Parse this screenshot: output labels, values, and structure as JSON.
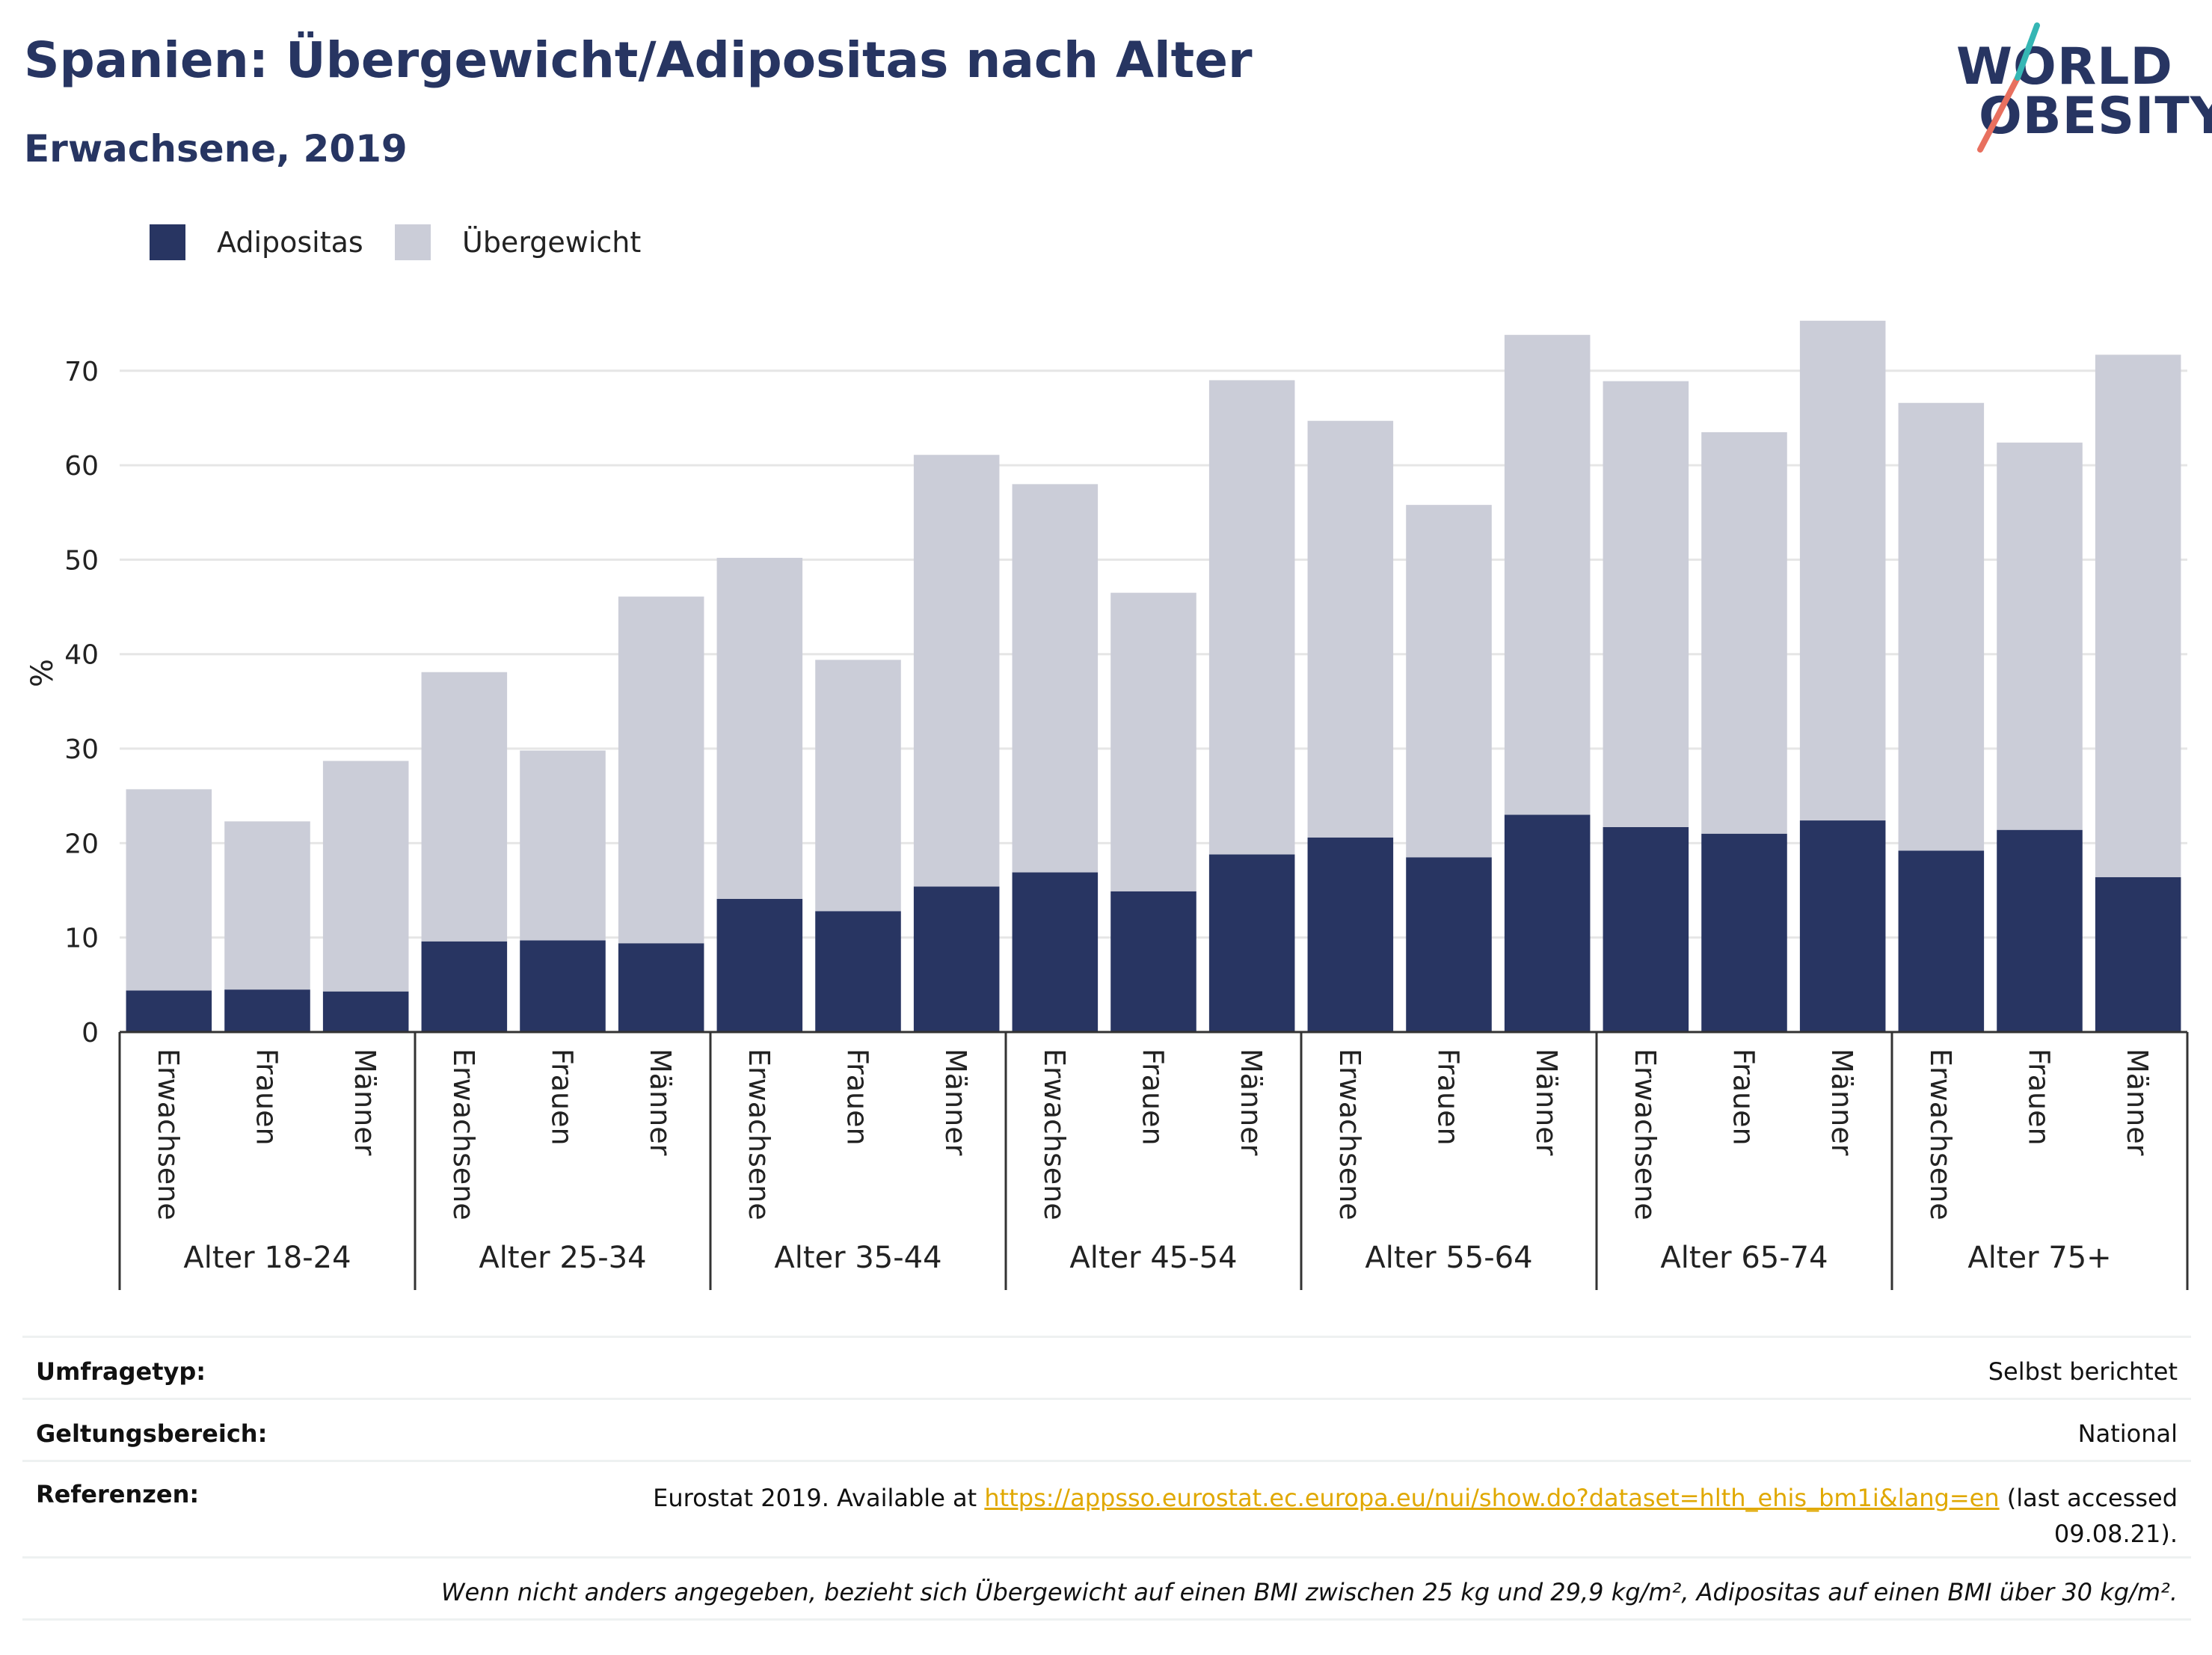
{
  "title": "Spanien: Übergewicht/Adipositas nach Alter",
  "subtitle": "Erwachsene, 2019",
  "logo": {
    "line1": "WORLD",
    "line2": "OBESITY"
  },
  "colors": {
    "adipositas": "#283562",
    "uebergewicht": "#cbcdd8",
    "title": "#273562",
    "grid": "#e6e6e6"
  },
  "legend": [
    {
      "label": "Adipositas",
      "color": "#283562"
    },
    {
      "label": "Übergewicht",
      "color": "#cbcdd8"
    }
  ],
  "chart_data": {
    "type": "bar",
    "stacked": true,
    "ylabel": "%",
    "ylim": [
      0,
      76
    ],
    "yticks": [
      0,
      10,
      20,
      30,
      40,
      50,
      60,
      70
    ],
    "grid": true,
    "legend_position": "top-left",
    "groups": [
      "Alter 18-24",
      "Alter 25-34",
      "Alter 35-44",
      "Alter 45-54",
      "Alter 55-64",
      "Alter 65-74",
      "Alter 75+"
    ],
    "sub_categories": [
      "Erwachsene",
      "Frauen",
      "Männer"
    ],
    "series": [
      {
        "name": "Adipositas",
        "values": [
          4.4,
          4.5,
          4.3,
          9.6,
          9.7,
          9.4,
          14.1,
          12.8,
          15.4,
          16.9,
          14.9,
          18.8,
          20.6,
          18.5,
          23.0,
          21.7,
          21.0,
          22.4,
          19.2,
          21.4,
          16.4
        ]
      },
      {
        "name": "Übergewicht",
        "values": [
          21.3,
          17.8,
          24.4,
          28.5,
          20.1,
          36.7,
          36.1,
          26.6,
          45.7,
          41.1,
          31.6,
          50.2,
          44.1,
          37.3,
          50.8,
          47.2,
          42.5,
          52.9,
          47.4,
          41.0,
          55.3
        ]
      }
    ]
  },
  "info": {
    "rows": [
      {
        "key": "Umfragetyp:",
        "value": "Selbst berichtet"
      },
      {
        "key": "Geltungsbereich:",
        "value": "National"
      }
    ],
    "references": {
      "key": "Referenzen:",
      "prefix": "Eurostat 2019. Available at",
      "link": "https://appsso.eurostat.ec.europa.eu/nui/show.do?dataset=hlth_ehis_bm1i&lang=en",
      "suffix": "(last accessed",
      "date": "09.08.21)."
    },
    "note": "Wenn nicht anders angegeben, bezieht sich Übergewicht auf einen BMI zwischen 25 kg und 29,9 kg/m², Adipositas auf einen BMI über 30 kg/m²."
  }
}
